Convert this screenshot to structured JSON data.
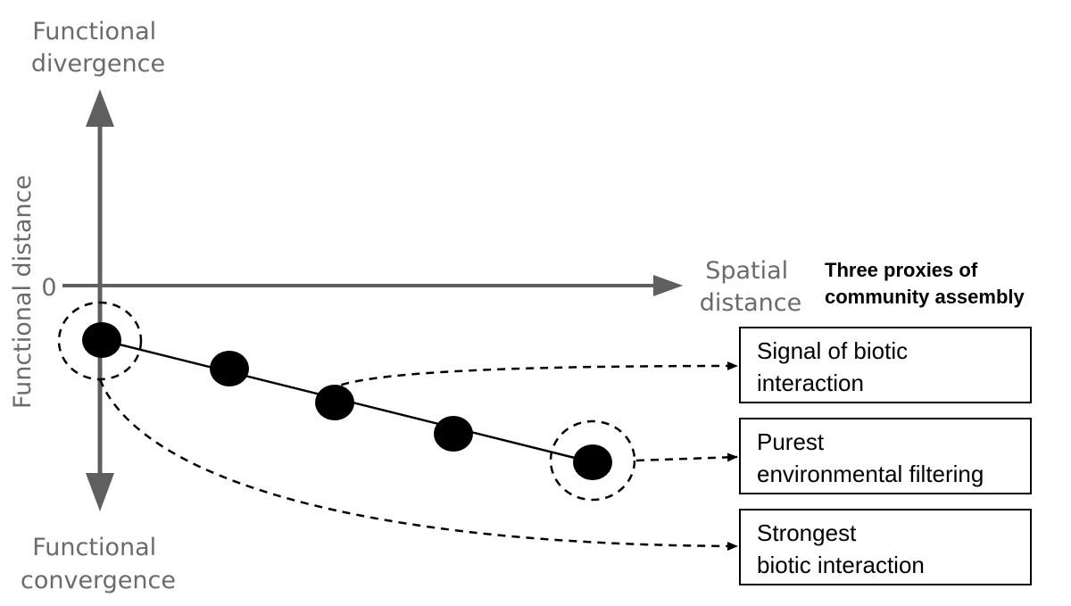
{
  "axes": {
    "y_top_label": [
      "Functional",
      "divergence"
    ],
    "y_bottom_label": [
      "Functional",
      "convergence"
    ],
    "y_axis_title": "Functional distance",
    "zero_label": "0",
    "x_axis_title": [
      "Spatial",
      "distance"
    ]
  },
  "heading": [
    "Three proxies of",
    "community assembly"
  ],
  "boxes": [
    {
      "lines": [
        "Signal of biotic",
        "interaction"
      ]
    },
    {
      "lines": [
        "Purest",
        "environmental filtering"
      ]
    },
    {
      "lines": [
        "Strongest",
        "biotic interaction"
      ]
    }
  ],
  "colors": {
    "axis": "#5f5f5f",
    "axis_text": "#6b6b6b",
    "points": "#000000"
  }
}
